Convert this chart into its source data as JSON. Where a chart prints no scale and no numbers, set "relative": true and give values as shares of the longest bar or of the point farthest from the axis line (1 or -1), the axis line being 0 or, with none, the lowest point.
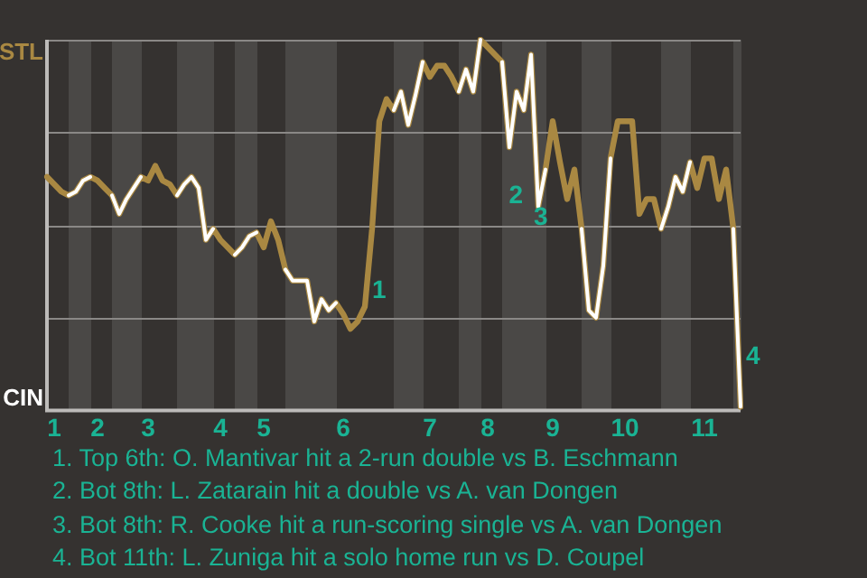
{
  "chart_data": {
    "type": "line",
    "relative": true,
    "categories": [
      null,
      "1",
      null,
      null,
      null,
      null,
      null,
      "2",
      null,
      null,
      null,
      null,
      null,
      null,
      "3",
      null,
      null,
      null,
      null,
      null,
      null,
      null,
      null,
      null,
      "4",
      null,
      null,
      null,
      null,
      null,
      "5",
      null,
      null,
      null,
      null,
      null,
      null,
      null,
      null,
      null,
      null,
      "6",
      null,
      null,
      null,
      null,
      null,
      null,
      null,
      null,
      null,
      null,
      null,
      "7",
      null,
      null,
      null,
      null,
      null,
      null,
      null,
      "8",
      null,
      null,
      null,
      null,
      null,
      null,
      null,
      null,
      "9",
      null,
      null,
      null,
      null,
      null,
      null,
      null,
      null,
      null,
      "10",
      null,
      null,
      null,
      null,
      null,
      null,
      null,
      null,
      null,
      null,
      "11",
      null,
      null,
      null,
      null,
      null
    ],
    "grid": "y",
    "legend": false,
    "marker": "none",
    "line_style": "solid",
    "series": [
      {
        "color": "#a98842",
        "values": [
          0.63,
          0.61,
          0.59,
          0.58,
          0.59,
          0.62,
          0.63,
          0.62,
          0.6,
          0.58,
          0.53,
          0.57,
          0.6,
          0.63,
          0.62,
          0.66,
          0.62,
          0.61,
          0.58,
          0.61,
          0.63,
          0.6,
          0.46,
          0.49,
          0.46,
          0.44,
          0.42,
          0.44,
          0.47,
          0.48,
          0.44,
          0.51,
          0.46,
          0.38,
          0.35,
          0.35,
          0.35,
          0.24,
          0.3,
          0.27,
          0.29,
          0.26,
          0.22,
          0.24,
          0.28,
          0.49,
          0.78,
          0.84,
          0.81,
          0.86,
          0.77,
          0.85,
          0.94,
          0.9,
          0.93,
          0.93,
          0.9,
          0.86,
          0.92,
          0.86,
          1,
          0.98,
          0.96,
          0.94,
          0.71,
          0.86,
          0.81,
          0.96,
          0.55,
          0.65,
          0.78,
          0.67,
          0.57,
          0.65,
          0.49,
          0.27,
          0.25,
          0.39,
          0.68,
          0.78,
          0.78,
          0.78,
          0.53,
          0.57,
          0.57,
          0.49,
          0.55,
          0.63,
          0.59,
          0.67,
          0.6,
          0.68,
          0.68,
          0.57,
          0.65,
          0.49,
          0.01
        ]
      },
      {
        "color": "#ffffff",
        "values": [
          null,
          null,
          null,
          0.58,
          0.59,
          0.62,
          0.63,
          null,
          null,
          0.58,
          0.53,
          0.57,
          0.6,
          0.63,
          null,
          null,
          null,
          null,
          0.58,
          0.61,
          0.63,
          0.6,
          0.46,
          0.49,
          null,
          null,
          0.42,
          0.44,
          0.47,
          0.48,
          null,
          null,
          null,
          0.38,
          0.35,
          0.35,
          0.35,
          0.24,
          0.3,
          0.27,
          0.29,
          null,
          null,
          null,
          null,
          null,
          null,
          null,
          0.81,
          0.86,
          0.77,
          0.85,
          0.94,
          null,
          null,
          null,
          null,
          0.86,
          0.92,
          0.86,
          1,
          null,
          null,
          0.94,
          0.71,
          0.86,
          0.81,
          0.96,
          0.55,
          0.65,
          null,
          null,
          null,
          null,
          0.49,
          0.27,
          0.25,
          0.39,
          0.68,
          null,
          null,
          null,
          null,
          null,
          null,
          0.49,
          0.55,
          0.63,
          0.59,
          0.67,
          null,
          null,
          null,
          null,
          null,
          0.49,
          0.01
        ]
      }
    ],
    "annotations": [
      "STL",
      "CIN",
      "1",
      "2",
      "3",
      "4",
      "1. Top 6th: O. Mantivar hit a 2-run double vs B. Eschmann",
      "2. Bot 8th: L. Zatarain hit a double vs A. van Dongen",
      "3. Bot 8th: R. Cooke hit a run-scoring single vs A. van Dongen",
      "4. Bot 11th: L. Zuniga hit a solo home run vs D. Coupel"
    ]
  }
}
